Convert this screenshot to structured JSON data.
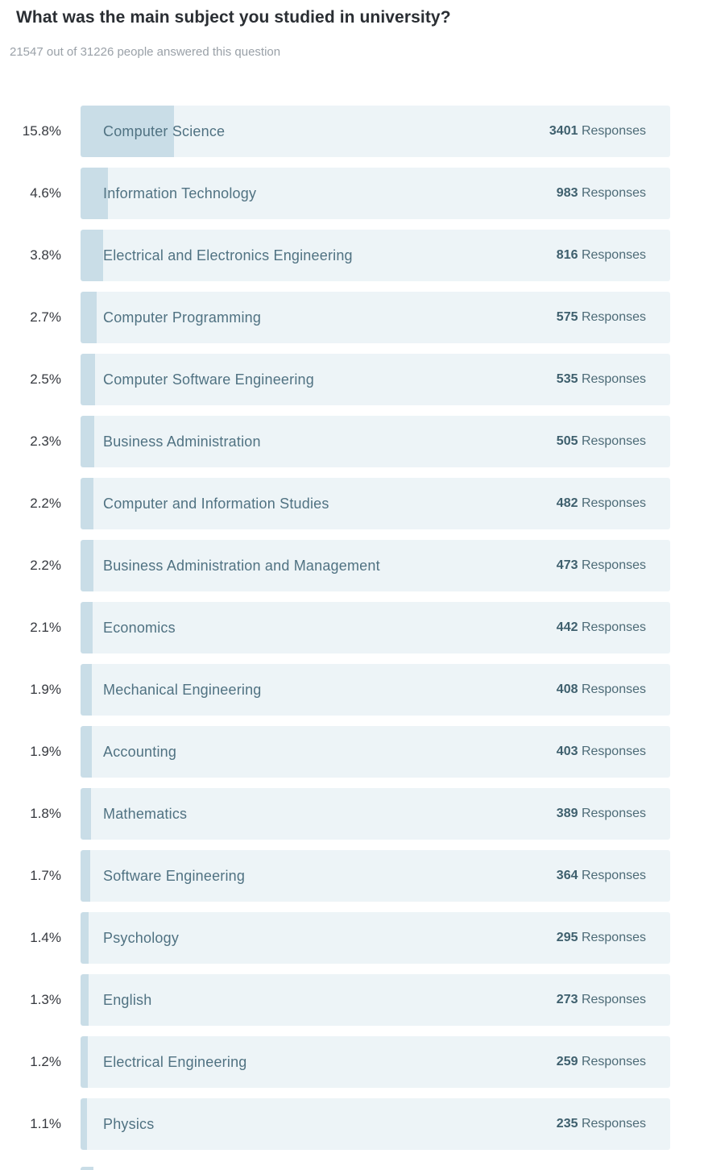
{
  "chart_data": {
    "type": "bar",
    "orientation": "horizontal",
    "title": "What was the main subject you studied in university?",
    "subtitle": "21547 out of 31226 people answered this question",
    "answered_count": 21547,
    "total_count": 31226,
    "unit": "%",
    "xlim": [
      0,
      100
    ],
    "responses_label": "Responses",
    "categories": [
      "Computer Science",
      "Information Technology",
      "Electrical and Electronics Engineering",
      "Computer Programming",
      "Computer Software Engineering",
      "Business Administration",
      "Computer and Information Studies",
      "Business Administration and Management",
      "Economics",
      "Mechanical Engineering",
      "Accounting",
      "Mathematics",
      "Software Engineering",
      "Psychology",
      "English",
      "Electrical Engineering",
      "Physics"
    ],
    "values": [
      15.8,
      4.6,
      3.8,
      2.7,
      2.5,
      2.3,
      2.2,
      2.2,
      2.1,
      1.9,
      1.9,
      1.8,
      1.7,
      1.4,
      1.3,
      1.2,
      1.1
    ],
    "counts": [
      3401,
      983,
      816,
      575,
      535,
      505,
      482,
      473,
      442,
      408,
      403,
      389,
      364,
      295,
      273,
      259,
      235
    ],
    "colors": {
      "bar_track": "#edf4f7",
      "bar_fill": "#c9dde7",
      "subject_text": "#507282",
      "count_text": "#3e5f6d",
      "percent_text": "#36393f",
      "subtitle_text": "#9aa1a8",
      "title_text": "#2a2e33"
    }
  }
}
